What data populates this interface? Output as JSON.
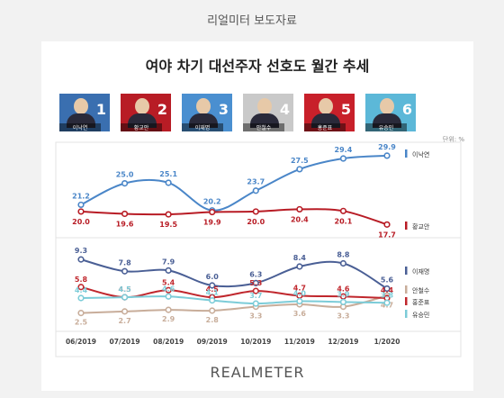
{
  "header": "리얼미터 보도자료",
  "title": "여야 차기 대선주자 선호도 월간 추세",
  "unit": "단위: %",
  "logo": "REALMETER",
  "candidates": [
    {
      "num": "1",
      "name": "이낙연",
      "color": "#3a6fb0"
    },
    {
      "num": "2",
      "name": "황교안",
      "color": "#b81c25"
    },
    {
      "num": "3",
      "name": "이재명",
      "color": "#4a8fd0"
    },
    {
      "num": "4",
      "name": "안철수",
      "color": "#c9c9c9"
    },
    {
      "num": "5",
      "name": "홍준표",
      "color": "#c8202a"
    },
    {
      "num": "6",
      "name": "유승민",
      "color": "#5cb8d8"
    }
  ],
  "chart_data": {
    "type": "line",
    "categories": [
      "06/2019",
      "07/2019",
      "08/2019",
      "09/2019",
      "10/2019",
      "11/2019",
      "12/2019",
      "1/2020"
    ],
    "top_panel": {
      "series": [
        {
          "name": "이낙연",
          "color": "#4a86c8",
          "values": [
            21.2,
            25.0,
            25.1,
            20.2,
            23.7,
            27.5,
            29.4,
            29.9
          ]
        },
        {
          "name": "황교안",
          "color": "#b81c25",
          "values": [
            20.0,
            19.6,
            19.5,
            19.9,
            20.0,
            20.4,
            20.1,
            17.7
          ]
        }
      ]
    },
    "bottom_panel": {
      "series": [
        {
          "name": "이재명",
          "color": "#4a5f95",
          "values": [
            9.3,
            7.8,
            7.9,
            6.0,
            6.3,
            8.4,
            8.8,
            5.6
          ]
        },
        {
          "name": "안철수",
          "color": "#c8ad9a",
          "values": [
            2.5,
            2.7,
            2.9,
            2.8,
            3.3,
            3.6,
            3.3,
            4.7
          ]
        },
        {
          "name": "홍준표",
          "color": "#c0272d",
          "values": [
            5.8,
            4.5,
            5.4,
            4.5,
            5.3,
            4.7,
            4.6,
            4.4
          ]
        },
        {
          "name": "유승민",
          "color": "#7cccd8",
          "values": [
            4.4,
            4.5,
            4.6,
            4.1,
            3.7,
            4.0,
            3.9,
            3.8
          ]
        }
      ]
    }
  }
}
